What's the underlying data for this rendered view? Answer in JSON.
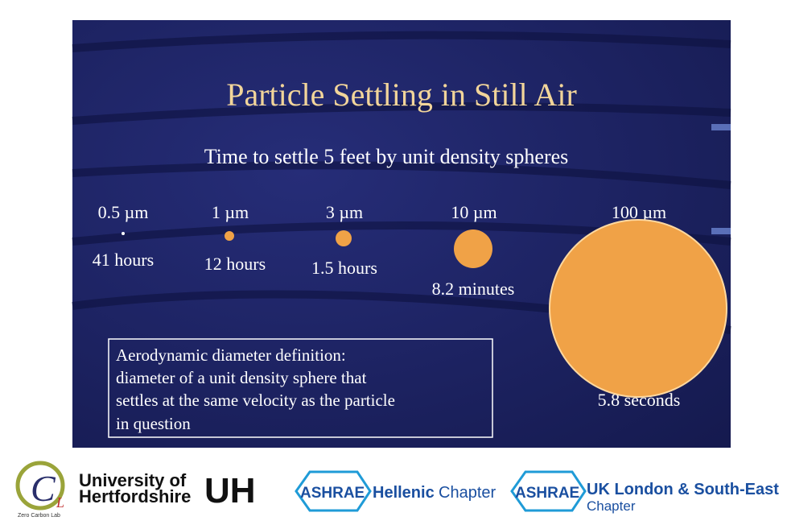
{
  "slide": {
    "title": "Particle Settling in Still Air",
    "subtitle": "Time to settle 5 feet by unit density spheres",
    "particles": [
      {
        "size": "0.5 µm",
        "time": "41 hours"
      },
      {
        "size": "1 µm",
        "time": "12 hours"
      },
      {
        "size": "3 µm",
        "time": "1.5 hours"
      },
      {
        "size": "10 µm",
        "time": "8.2 minutes"
      },
      {
        "size": "100 µm",
        "time": "5.8 seconds"
      }
    ],
    "definition": [
      "Aerodynamic diameter definition:",
      "diameter of a unit density sphere that",
      "settles at the same velocity as the particle",
      "in question"
    ]
  },
  "footer": {
    "zcl_letters": [
      "C",
      "L"
    ],
    "zcl_name": "Zero Carbon Lab",
    "uh_lines": [
      "University of",
      "Hertfordshire"
    ],
    "uh_mark": "UH",
    "ashrae_hellenic": {
      "brand": "ASHRAE",
      "name": "Hellenic",
      "suffix": "Chapter"
    },
    "ashrae_uk": {
      "brand": "ASHRAE",
      "name": "UK London & South-East",
      "suffix": "Chapter"
    }
  }
}
